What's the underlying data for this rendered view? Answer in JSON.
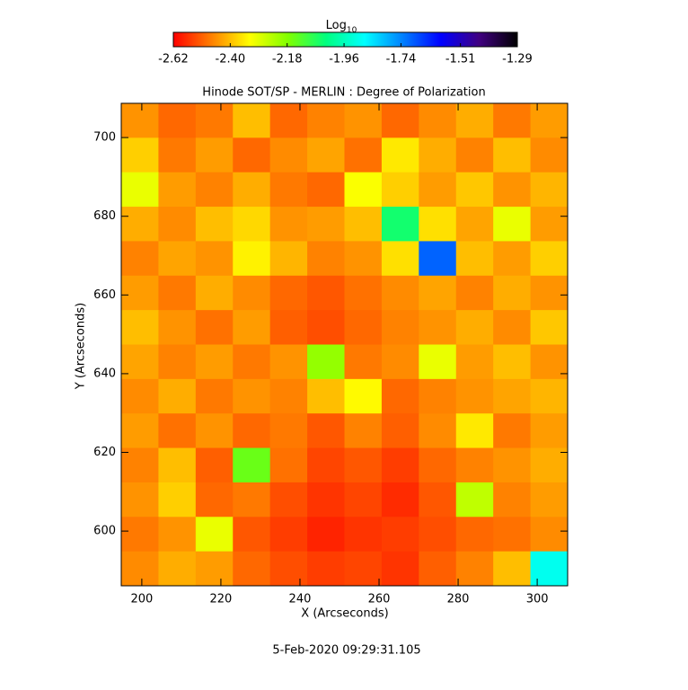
{
  "chart_data": {
    "type": "heatmap",
    "title": "Hinode SOT/SP - MERLIN : Degree of Polarization",
    "x_label": "X (Arcseconds)",
    "y_label": "Y (Arcseconds)",
    "footer": "5-Feb-2020 09:29:31.105",
    "colorbar_label": "Log",
    "colorbar_label_sub": "10",
    "colormap": [
      "#ff0000",
      "#ff8000",
      "#ffff00",
      "#80ff00",
      "#00ff80",
      "#00ffff",
      "#0080ff",
      "#0000ff",
      "#400080",
      "#000000"
    ],
    "zlim": [
      -2.62,
      -1.29
    ],
    "zticks": [
      -2.62,
      {
        "value": -2.4,
        "label": "-2.40"
      },
      -2.18,
      -1.96,
      -1.74,
      -1.51,
      -1.29
    ],
    "xlim": [
      194.8,
      307.7
    ],
    "ylim": [
      586.1,
      708.7
    ],
    "xticks": [
      200,
      220,
      240,
      260,
      280,
      300
    ],
    "yticks": [
      600,
      620,
      640,
      660,
      680,
      700
    ],
    "z": [
      [
        -2.45,
        -2.5,
        -2.48,
        -2.4,
        -2.5,
        -2.47,
        -2.45,
        -2.5,
        -2.46,
        -2.42,
        -2.48,
        -2.44
      ],
      [
        -2.38,
        -2.48,
        -2.44,
        -2.5,
        -2.46,
        -2.43,
        -2.49,
        -2.35,
        -2.42,
        -2.47,
        -2.4,
        -2.46
      ],
      [
        -2.3,
        -2.44,
        -2.47,
        -2.42,
        -2.48,
        -2.5,
        -2.32,
        -2.38,
        -2.44,
        -2.39,
        -2.45,
        -2.41
      ],
      [
        -2.42,
        -2.46,
        -2.4,
        -2.37,
        -2.45,
        -2.44,
        -2.4,
        -2.05,
        -2.36,
        -2.43,
        -2.3,
        -2.44
      ],
      [
        -2.47,
        -2.43,
        -2.45,
        -2.34,
        -2.41,
        -2.47,
        -2.45,
        -2.36,
        -1.7,
        -2.4,
        -2.44,
        -2.38
      ],
      [
        -2.44,
        -2.48,
        -2.42,
        -2.46,
        -2.5,
        -2.52,
        -2.49,
        -2.46,
        -2.43,
        -2.47,
        -2.42,
        -2.45
      ],
      [
        -2.4,
        -2.45,
        -2.49,
        -2.44,
        -2.51,
        -2.53,
        -2.5,
        -2.47,
        -2.45,
        -2.42,
        -2.46,
        -2.39
      ],
      [
        -2.43,
        -2.47,
        -2.44,
        -2.48,
        -2.45,
        -2.2,
        -2.48,
        -2.46,
        -2.3,
        -2.44,
        -2.4,
        -2.45
      ],
      [
        -2.46,
        -2.42,
        -2.48,
        -2.45,
        -2.47,
        -2.4,
        -2.33,
        -2.5,
        -2.47,
        -2.45,
        -2.43,
        -2.41
      ],
      [
        -2.44,
        -2.49,
        -2.45,
        -2.5,
        -2.48,
        -2.52,
        -2.47,
        -2.51,
        -2.46,
        -2.35,
        -2.48,
        -2.44
      ],
      [
        -2.47,
        -2.4,
        -2.51,
        -2.15,
        -2.49,
        -2.54,
        -2.52,
        -2.55,
        -2.5,
        -2.47,
        -2.45,
        -2.42
      ],
      [
        -2.45,
        -2.38,
        -2.5,
        -2.48,
        -2.53,
        -2.56,
        -2.54,
        -2.57,
        -2.52,
        -2.25,
        -2.47,
        -2.44
      ],
      [
        -2.48,
        -2.45,
        -2.3,
        -2.52,
        -2.55,
        -2.58,
        -2.56,
        -2.55,
        -2.53,
        -2.5,
        -2.49,
        -2.46
      ],
      [
        -2.46,
        -2.42,
        -2.44,
        -2.5,
        -2.53,
        -2.55,
        -2.54,
        -2.56,
        -2.51,
        -2.47,
        -2.4,
        -1.9
      ]
    ]
  }
}
